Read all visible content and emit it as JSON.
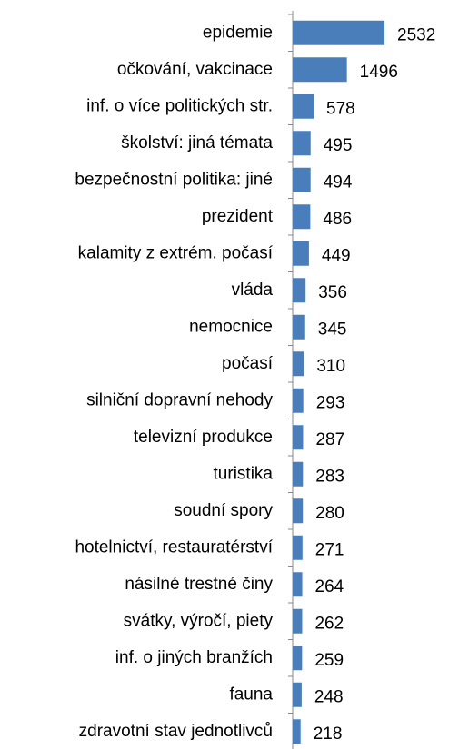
{
  "chart_data": {
    "type": "bar",
    "orientation": "horizontal",
    "color": "#4a7ebb",
    "categories": [
      "epidemie",
      "očkování, vakcinace",
      "inf. o více politických str.",
      "školství: jiná témata",
      "bezpečnostní politika: jiné",
      "prezident",
      "kalamity z extrém. počasí",
      "vláda",
      "nemocnice",
      "počasí",
      "silniční dopravní nehody",
      "televizní produkce",
      "turistika",
      "soudní spory",
      "hotelnictví, restauratérství",
      "násilné trestné činy",
      "svátky, výročí, piety",
      "inf. o jiných branžích",
      "fauna",
      "zdravotní stav jednotlivců"
    ],
    "values": [
      2532,
      1496,
      578,
      495,
      494,
      486,
      449,
      356,
      345,
      310,
      293,
      287,
      283,
      280,
      271,
      264,
      262,
      259,
      248,
      218
    ]
  }
}
